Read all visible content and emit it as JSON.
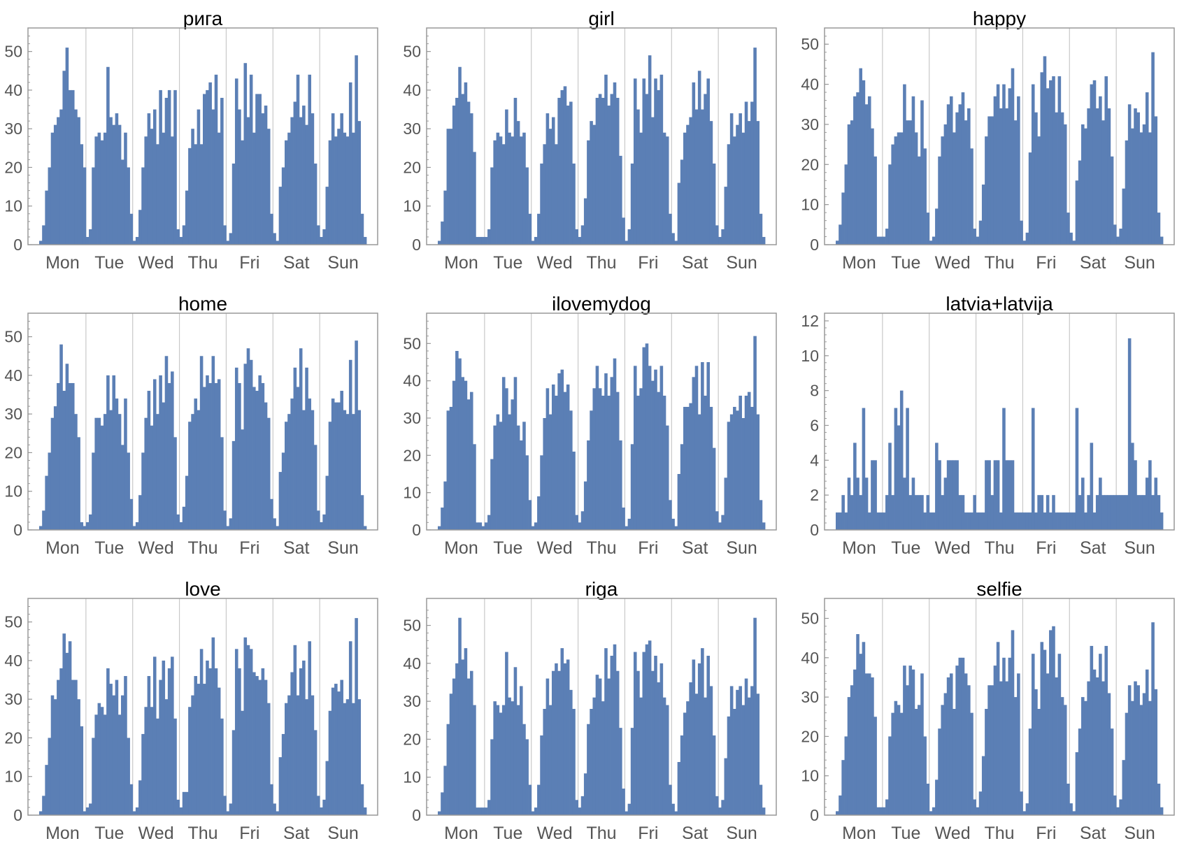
{
  "figure": {
    "days": [
      "Mon",
      "Tue",
      "Wed",
      "Thu",
      "Fri",
      "Sat",
      "Sun"
    ],
    "bar_color": "#5b7fb5",
    "frame_color": "#999999",
    "grid_color": "#c8c8c8"
  },
  "chart_data": [
    {
      "type": "bar",
      "title": "рига",
      "xlabel": "",
      "ylabel": "",
      "categories": [
        "Mon",
        "Tue",
        "Wed",
        "Thu",
        "Fri",
        "Sat",
        "Sun"
      ],
      "ylim": [
        0,
        55
      ],
      "yticks": [
        0,
        10,
        20,
        30,
        40,
        50
      ],
      "grid": "vertical day separators",
      "hourly_counts": [
        [
          1,
          5,
          14,
          20,
          29,
          31,
          33,
          35,
          45,
          51,
          40,
          40,
          35,
          33,
          26,
          20
        ],
        [
          2,
          4,
          20,
          28,
          29,
          27,
          29,
          46,
          33,
          31,
          34,
          31,
          22,
          29,
          20,
          8
        ],
        [
          1,
          2,
          9,
          20,
          28,
          34,
          30,
          35,
          26,
          40,
          29,
          38,
          40,
          28,
          40,
          4
        ],
        [
          2,
          5,
          14,
          25,
          30,
          26,
          35,
          26,
          39,
          40,
          42,
          35,
          44,
          29,
          38,
          5
        ],
        [
          1,
          3,
          21,
          43,
          35,
          27,
          47,
          33,
          44,
          29,
          39,
          39,
          34,
          36,
          30,
          8
        ],
        [
          3,
          1,
          15,
          20,
          27,
          29,
          33,
          37,
          44,
          33,
          36,
          31,
          44,
          34,
          21,
          5
        ],
        [
          2,
          4,
          15,
          27,
          34,
          28,
          30,
          34,
          29,
          28,
          42,
          29,
          49,
          32,
          8,
          2
        ]
      ]
    },
    {
      "type": "bar",
      "title": "girl",
      "xlabel": "",
      "ylabel": "",
      "categories": [
        "Mon",
        "Tue",
        "Wed",
        "Thu",
        "Fri",
        "Sat",
        "Sun"
      ],
      "ylim": [
        0,
        55
      ],
      "yticks": [
        0,
        10,
        20,
        30,
        40,
        50
      ],
      "grid": "vertical day separators",
      "hourly_counts": [
        [
          1,
          6,
          14,
          30,
          30,
          36,
          38,
          46,
          39,
          42,
          37,
          34,
          24,
          2,
          2,
          2
        ],
        [
          2,
          4,
          20,
          27,
          29,
          28,
          26,
          35,
          29,
          28,
          38,
          32,
          28,
          29,
          20,
          8
        ],
        [
          1,
          2,
          8,
          21,
          26,
          34,
          30,
          33,
          26,
          38,
          40,
          41,
          36,
          37,
          21,
          4
        ],
        [
          2,
          5,
          12,
          27,
          32,
          31,
          38,
          39,
          38,
          44,
          36,
          39,
          42,
          38,
          23,
          7
        ],
        [
          1,
          4,
          21,
          43,
          35,
          29,
          43,
          39,
          49,
          33,
          43,
          40,
          44,
          29,
          28,
          8
        ],
        [
          3,
          1,
          16,
          22,
          29,
          31,
          33,
          42,
          35,
          45,
          35,
          39,
          43,
          32,
          21,
          5
        ],
        [
          2,
          4,
          15,
          26,
          34,
          28,
          31,
          34,
          29,
          37,
          32,
          37,
          51,
          32,
          8,
          2
        ]
      ]
    },
    {
      "type": "bar",
      "title": "happy",
      "xlabel": "",
      "ylabel": "",
      "categories": [
        "Mon",
        "Tue",
        "Wed",
        "Thu",
        "Fri",
        "Sat",
        "Sun"
      ],
      "ylim": [
        0,
        53
      ],
      "yticks": [
        0,
        10,
        20,
        30,
        40,
        50
      ],
      "grid": "vertical day separators",
      "hourly_counts": [
        [
          1,
          5,
          13,
          20,
          30,
          31,
          37,
          38,
          44,
          41,
          35,
          37,
          29,
          22,
          2,
          2
        ],
        [
          2,
          4,
          20,
          25,
          27,
          28,
          28,
          40,
          31,
          31,
          37,
          28,
          22,
          36,
          24,
          8
        ],
        [
          1,
          2,
          9,
          22,
          27,
          30,
          35,
          37,
          28,
          33,
          35,
          38,
          31,
          34,
          24,
          4
        ],
        [
          2,
          6,
          15,
          27,
          32,
          32,
          37,
          40,
          34,
          40,
          34,
          39,
          44,
          31,
          37,
          6
        ],
        [
          1,
          3,
          23,
          40,
          33,
          27,
          43,
          47,
          39,
          41,
          42,
          33,
          42,
          33,
          30,
          8
        ],
        [
          3,
          1,
          16,
          21,
          30,
          29,
          34,
          40,
          41,
          34,
          37,
          31,
          42,
          34,
          22,
          5
        ],
        [
          2,
          4,
          14,
          26,
          35,
          29,
          34,
          33,
          28,
          30,
          38,
          28,
          48,
          32,
          8,
          2
        ]
      ]
    },
    {
      "type": "bar",
      "title": "home",
      "xlabel": "",
      "ylabel": "",
      "categories": [
        "Mon",
        "Tue",
        "Wed",
        "Thu",
        "Fri",
        "Sat",
        "Sun"
      ],
      "ylim": [
        0,
        55
      ],
      "yticks": [
        0,
        10,
        20,
        30,
        40,
        50
      ],
      "grid": "vertical day separators",
      "hourly_counts": [
        [
          1,
          5,
          14,
          20,
          29,
          32,
          38,
          48,
          36,
          43,
          38,
          38,
          30,
          24,
          2,
          1
        ],
        [
          2,
          4,
          20,
          29,
          29,
          27,
          30,
          40,
          31,
          40,
          34,
          30,
          22,
          34,
          20,
          8
        ],
        [
          1,
          2,
          9,
          20,
          29,
          36,
          27,
          39,
          30,
          40,
          33,
          45,
          38,
          41,
          24,
          4
        ],
        [
          2,
          6,
          14,
          28,
          30,
          34,
          31,
          45,
          37,
          40,
          38,
          45,
          38,
          39,
          24,
          5
        ],
        [
          1,
          3,
          23,
          42,
          38,
          26,
          43,
          47,
          44,
          37,
          36,
          40,
          38,
          33,
          29,
          8
        ],
        [
          3,
          1,
          15,
          20,
          28,
          30,
          34,
          42,
          37,
          47,
          31,
          42,
          34,
          31,
          22,
          5
        ],
        [
          2,
          4,
          14,
          28,
          34,
          33,
          33,
          36,
          31,
          30,
          44,
          30,
          49,
          31,
          9,
          1
        ]
      ]
    },
    {
      "type": "bar",
      "title": "ilovemydog",
      "xlabel": "",
      "ylabel": "",
      "categories": [
        "Mon",
        "Tue",
        "Wed",
        "Thu",
        "Fri",
        "Sat",
        "Sun"
      ],
      "ylim": [
        0,
        57
      ],
      "yticks": [
        0,
        10,
        20,
        30,
        40,
        50
      ],
      "grid": "vertical day separators",
      "hourly_counts": [
        [
          1,
          6,
          13,
          32,
          33,
          40,
          48,
          46,
          41,
          40,
          35,
          37,
          23,
          2,
          2,
          1
        ],
        [
          2,
          4,
          19,
          28,
          31,
          29,
          41,
          38,
          31,
          35,
          41,
          28,
          24,
          29,
          20,
          8
        ],
        [
          1,
          2,
          9,
          20,
          30,
          38,
          31,
          39,
          36,
          42,
          43,
          37,
          39,
          32,
          21,
          4
        ],
        [
          2,
          5,
          13,
          24,
          32,
          38,
          44,
          38,
          36,
          42,
          36,
          41,
          46,
          37,
          24,
          6
        ],
        [
          1,
          3,
          23,
          44,
          36,
          38,
          49,
          50,
          44,
          40,
          43,
          37,
          44,
          36,
          28,
          8
        ],
        [
          3,
          1,
          15,
          23,
          33,
          33,
          34,
          41,
          44,
          31,
          45,
          36,
          45,
          33,
          22,
          5
        ],
        [
          2,
          4,
          14,
          29,
          31,
          33,
          32,
          36,
          30,
          36,
          37,
          33,
          52,
          31,
          8,
          2
        ]
      ]
    },
    {
      "type": "bar",
      "title": "latvia+latvija",
      "xlabel": "",
      "ylabel": "",
      "categories": [
        "Mon",
        "Tue",
        "Wed",
        "Thu",
        "Fri",
        "Sat",
        "Sun"
      ],
      "ylim": [
        0,
        12.2
      ],
      "yticks": [
        0,
        2,
        4,
        6,
        8,
        10,
        12
      ],
      "grid": "vertical day separators",
      "hourly_counts": [
        [
          1,
          1,
          2,
          1,
          3,
          2,
          5,
          3,
          2,
          7,
          3,
          1,
          4,
          4,
          1,
          1
        ],
        [
          1,
          2,
          5,
          2,
          7,
          6,
          8,
          3,
          7,
          2,
          3,
          2,
          2,
          2,
          1,
          2
        ],
        [
          1,
          1,
          5,
          4,
          2,
          3,
          4,
          4,
          4,
          4,
          2,
          2,
          1,
          1,
          1,
          2
        ],
        [
          1,
          1,
          1,
          4,
          4,
          2,
          4,
          4,
          1,
          7,
          4,
          4,
          4,
          1,
          1,
          1
        ],
        [
          1,
          1,
          1,
          7,
          1,
          2,
          2,
          1,
          2,
          1,
          2,
          1,
          1,
          1,
          1,
          1
        ],
        [
          1,
          1,
          7,
          2,
          3,
          1,
          2,
          5,
          1,
          2,
          3,
          2,
          2,
          2,
          2,
          2
        ],
        [
          2,
          2,
          2,
          2,
          11,
          5,
          4,
          2,
          2,
          2,
          3,
          4,
          2,
          3,
          2,
          1
        ]
      ]
    },
    {
      "type": "bar",
      "title": "love",
      "xlabel": "",
      "ylabel": "",
      "categories": [
        "Mon",
        "Tue",
        "Wed",
        "Thu",
        "Fri",
        "Sat",
        "Sun"
      ],
      "ylim": [
        0,
        55
      ],
      "yticks": [
        0,
        10,
        20,
        30,
        40,
        50
      ],
      "grid": "vertical day separators",
      "hourly_counts": [
        [
          1,
          5,
          13,
          20,
          31,
          30,
          35,
          38,
          47,
          42,
          45,
          35,
          35,
          30,
          23,
          1
        ],
        [
          2,
          3,
          20,
          26,
          29,
          28,
          26,
          38,
          34,
          31,
          35,
          26,
          31,
          36,
          20,
          8
        ],
        [
          1,
          2,
          9,
          21,
          28,
          36,
          28,
          41,
          25,
          35,
          40,
          30,
          38,
          41,
          25,
          4
        ],
        [
          2,
          6,
          6,
          28,
          31,
          36,
          34,
          43,
          34,
          40,
          38,
          46,
          38,
          33,
          25,
          5
        ],
        [
          1,
          3,
          22,
          43,
          38,
          27,
          46,
          44,
          43,
          37,
          36,
          35,
          38,
          35,
          29,
          8
        ],
        [
          3,
          1,
          15,
          21,
          29,
          31,
          37,
          44,
          31,
          38,
          40,
          30,
          45,
          31,
          22,
          5
        ],
        [
          2,
          4,
          14,
          27,
          33,
          34,
          32,
          35,
          29,
          30,
          45,
          29,
          51,
          30,
          8,
          2
        ]
      ]
    },
    {
      "type": "bar",
      "title": "riga",
      "xlabel": "",
      "ylabel": "",
      "categories": [
        "Mon",
        "Tue",
        "Wed",
        "Thu",
        "Fri",
        "Sat",
        "Sun"
      ],
      "ylim": [
        0,
        56
      ],
      "yticks": [
        0,
        10,
        20,
        30,
        40,
        50
      ],
      "grid": "vertical day separators",
      "hourly_counts": [
        [
          1,
          6,
          13,
          24,
          32,
          36,
          40,
          52,
          41,
          44,
          36,
          38,
          29,
          2,
          2,
          2
        ],
        [
          2,
          4,
          20,
          30,
          29,
          27,
          29,
          43,
          31,
          30,
          39,
          29,
          34,
          24,
          20,
          8
        ],
        [
          1,
          2,
          8,
          21,
          28,
          36,
          29,
          38,
          40,
          38,
          44,
          40,
          41,
          33,
          28,
          4
        ],
        [
          2,
          5,
          11,
          24,
          28,
          31,
          37,
          36,
          30,
          44,
          36,
          42,
          45,
          38,
          23,
          7
        ],
        [
          1,
          3,
          23,
          43,
          38,
          31,
          43,
          45,
          46,
          38,
          42,
          35,
          40,
          31,
          29,
          8
        ],
        [
          3,
          1,
          14,
          21,
          27,
          30,
          35,
          41,
          32,
          40,
          44,
          31,
          42,
          34,
          21,
          5
        ],
        [
          2,
          4,
          15,
          26,
          34,
          28,
          33,
          34,
          29,
          36,
          31,
          34,
          52,
          32,
          8,
          2
        ]
      ]
    },
    {
      "type": "bar",
      "title": "selfie",
      "xlabel": "",
      "ylabel": "",
      "categories": [
        "Mon",
        "Tue",
        "Wed",
        "Thu",
        "Fri",
        "Sat",
        "Sun"
      ],
      "ylim": [
        0,
        54
      ],
      "yticks": [
        0,
        10,
        20,
        30,
        40,
        50
      ],
      "grid": "vertical day separators",
      "hourly_counts": [
        [
          1,
          5,
          14,
          20,
          30,
          33,
          37,
          46,
          41,
          44,
          36,
          36,
          35,
          25,
          2,
          2
        ],
        [
          2,
          4,
          20,
          26,
          29,
          28,
          26,
          38,
          33,
          38,
          37,
          27,
          28,
          36,
          20,
          8
        ],
        [
          1,
          2,
          9,
          22,
          28,
          31,
          35,
          36,
          27,
          38,
          40,
          40,
          36,
          33,
          26,
          4
        ],
        [
          2,
          6,
          15,
          27,
          33,
          33,
          38,
          44,
          34,
          40,
          34,
          40,
          47,
          30,
          36,
          6
        ],
        [
          1,
          3,
          22,
          41,
          32,
          27,
          44,
          42,
          36,
          47,
          48,
          35,
          41,
          30,
          28,
          8
        ],
        [
          3,
          1,
          16,
          22,
          30,
          29,
          34,
          43,
          37,
          35,
          41,
          34,
          43,
          31,
          22,
          5
        ],
        [
          2,
          4,
          14,
          26,
          33,
          29,
          34,
          33,
          28,
          31,
          37,
          29,
          49,
          32,
          8,
          2
        ]
      ]
    }
  ]
}
